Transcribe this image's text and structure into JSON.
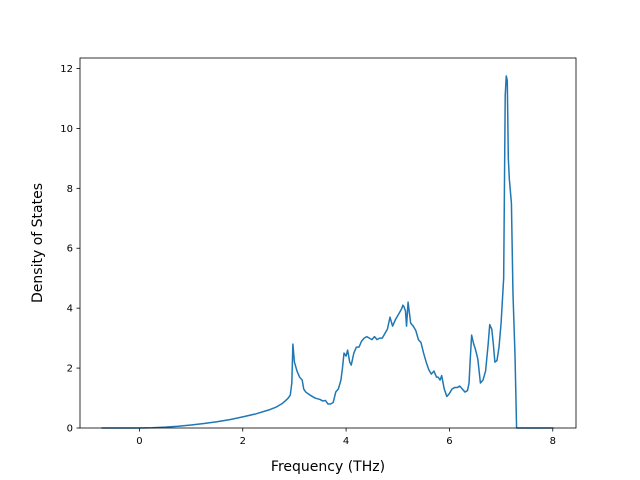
{
  "chart_data": {
    "type": "line",
    "xlabel": "Frequency (THz)",
    "ylabel": "Density of States",
    "xlim": [
      -1.15,
      8.45
    ],
    "ylim": [
      0,
      12.35
    ],
    "xticks": [
      0,
      2,
      4,
      6,
      8
    ],
    "yticks": [
      0,
      2,
      4,
      6,
      8,
      10,
      12
    ],
    "grid": false,
    "legend": "none",
    "series_color": "#1f77b4",
    "series": [
      {
        "x": [
          -0.72,
          -0.5,
          -0.25,
          0.0,
          0.25,
          0.5,
          0.75,
          1.0,
          1.25,
          1.5,
          1.75,
          2.0,
          2.25,
          2.5,
          2.65,
          2.75,
          2.82,
          2.88,
          2.92,
          2.95,
          2.97,
          3.0,
          3.05,
          3.1,
          3.15,
          3.18,
          3.22,
          3.3,
          3.4,
          3.5,
          3.55,
          3.6,
          3.65,
          3.7,
          3.75,
          3.8,
          3.85,
          3.9,
          3.93,
          3.96,
          4.0,
          4.03,
          4.07,
          4.1,
          4.15,
          4.2,
          4.25,
          4.3,
          4.35,
          4.4,
          4.45,
          4.5,
          4.55,
          4.6,
          4.65,
          4.7,
          4.75,
          4.8,
          4.85,
          4.9,
          4.95,
          5.0,
          5.05,
          5.08,
          5.1,
          5.12,
          5.15,
          5.17,
          5.2,
          5.25,
          5.3,
          5.35,
          5.4,
          5.45,
          5.5,
          5.55,
          5.6,
          5.65,
          5.7,
          5.75,
          5.78,
          5.82,
          5.85,
          5.9,
          5.95,
          6.0,
          6.05,
          6.1,
          6.15,
          6.2,
          6.25,
          6.3,
          6.35,
          6.38,
          6.4,
          6.43,
          6.47,
          6.5,
          6.55,
          6.6,
          6.65,
          6.7,
          6.75,
          6.78,
          6.82,
          6.85,
          6.88,
          6.92,
          6.96,
          7.0,
          7.05,
          7.08,
          7.1,
          7.12,
          7.14,
          7.16,
          7.2,
          7.23,
          7.27,
          7.3,
          7.35,
          8.0
        ],
        "y": [
          0.0,
          0.0,
          0.0,
          0.0,
          0.01,
          0.03,
          0.06,
          0.1,
          0.15,
          0.21,
          0.28,
          0.37,
          0.47,
          0.6,
          0.7,
          0.8,
          0.9,
          1.0,
          1.1,
          1.5,
          2.8,
          2.2,
          1.9,
          1.7,
          1.6,
          1.3,
          1.2,
          1.1,
          1.0,
          0.95,
          0.9,
          0.92,
          0.8,
          0.8,
          0.85,
          1.2,
          1.3,
          1.6,
          2.0,
          2.5,
          2.4,
          2.6,
          2.2,
          2.1,
          2.5,
          2.7,
          2.7,
          2.9,
          3.0,
          3.05,
          3.0,
          2.95,
          3.05,
          2.95,
          3.0,
          3.0,
          3.15,
          3.3,
          3.7,
          3.4,
          3.6,
          3.75,
          3.9,
          4.0,
          4.1,
          4.05,
          3.9,
          3.4,
          4.2,
          3.5,
          3.4,
          3.25,
          2.95,
          2.85,
          2.5,
          2.2,
          1.95,
          1.8,
          1.9,
          1.7,
          1.7,
          1.6,
          1.75,
          1.3,
          1.05,
          1.15,
          1.3,
          1.35,
          1.35,
          1.4,
          1.3,
          1.2,
          1.25,
          1.5,
          2.2,
          3.1,
          2.8,
          2.65,
          2.3,
          1.5,
          1.6,
          1.9,
          2.8,
          3.45,
          3.3,
          2.8,
          2.2,
          2.25,
          2.7,
          3.5,
          5.0,
          11.1,
          11.75,
          11.6,
          9.0,
          8.3,
          7.5,
          4.5,
          2.4,
          0.0,
          0.0,
          0.0
        ]
      }
    ]
  }
}
